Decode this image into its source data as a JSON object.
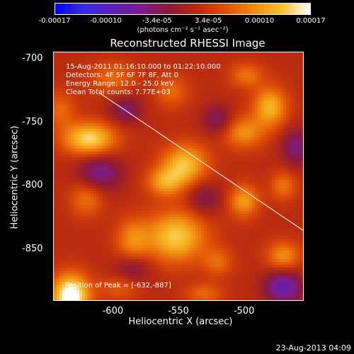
{
  "colorbar": {
    "ticks": [
      "-0.00017",
      "-0.00010",
      "-3.4e-05",
      "3.4e-05",
      "0.00010",
      "0.00017"
    ],
    "units": "(photons cm⁻² s⁻¹ asec⁻²)",
    "colors": [
      "#0000ff",
      "#3a2be0",
      "#5b1fb8",
      "#7a1d90",
      "#8a1a3a",
      "#b82a10",
      "#e05008",
      "#f08a10",
      "#f8c030",
      "#ffffff"
    ]
  },
  "info": {
    "line1": "15-Aug-2011 01:16:10.000 to 01:22:10.000",
    "line2": "Detectors: 4F 5F 6F 7F 8F, Att 0",
    "line3": "Energy Range: 12.0 - 25.0 keV",
    "line4": "Clean     Total counts: 7.77E+03"
  },
  "peak_label": "Position of Peak = [-632,-887]",
  "timestamp": "23-Aug-2013 04:09",
  "chart_data": {
    "type": "heatmap",
    "title": "Reconstructed RHESSI Image",
    "xlabel": "Heliocentric X (arcsec)",
    "ylabel": "Heliocentric Y (arcsec)",
    "xlim": [
      -645,
      -455
    ],
    "ylim": [
      -890,
      -695
    ],
    "x_ticks": [
      -600,
      -550,
      -500
    ],
    "x_tick_labels": [
      "-600",
      "-550",
      "-500"
    ],
    "y_ticks": [
      -700,
      -750,
      -800,
      -850
    ],
    "y_tick_labels": [
      "-700",
      "-750",
      "-800",
      "-850"
    ],
    "zlim": [
      -0.00017,
      0.00017
    ],
    "peak": {
      "x": -632,
      "y": -887
    },
    "limb_line": {
      "x": [
        -610,
        -455
      ],
      "y": [
        -727,
        -835
      ]
    },
    "blobs": [
      {
        "x": -632,
        "y": -887,
        "sx": 10,
        "sy": 12,
        "v": 1.0
      },
      {
        "x": -618,
        "y": -763,
        "sx": 14,
        "sy": 9,
        "v": 0.75
      },
      {
        "x": -640,
        "y": -740,
        "sx": 8,
        "sy": 10,
        "v": 0.3
      },
      {
        "x": -545,
        "y": -783,
        "sx": 12,
        "sy": 11,
        "v": 0.65
      },
      {
        "x": -560,
        "y": -797,
        "sx": 10,
        "sy": 8,
        "v": 0.5
      },
      {
        "x": -552,
        "y": -840,
        "sx": 16,
        "sy": 14,
        "v": 0.7
      },
      {
        "x": -585,
        "y": -843,
        "sx": 9,
        "sy": 12,
        "v": 0.4
      },
      {
        "x": -480,
        "y": -738,
        "sx": 9,
        "sy": 11,
        "v": 0.6
      },
      {
        "x": -500,
        "y": -758,
        "sx": 11,
        "sy": 9,
        "v": 0.45
      },
      {
        "x": -498,
        "y": -713,
        "sx": 9,
        "sy": 7,
        "v": 0.35
      },
      {
        "x": -470,
        "y": -800,
        "sx": 7,
        "sy": 8,
        "v": 0.35
      },
      {
        "x": -500,
        "y": -812,
        "sx": 8,
        "sy": 9,
        "v": 0.5
      },
      {
        "x": -470,
        "y": -855,
        "sx": 9,
        "sy": 8,
        "v": 0.45
      },
      {
        "x": -520,
        "y": -860,
        "sx": 8,
        "sy": 8,
        "v": 0.3
      },
      {
        "x": -600,
        "y": -715,
        "sx": 12,
        "sy": 9,
        "v": 0.3
      },
      {
        "x": -555,
        "y": -726,
        "sx": 9,
        "sy": 9,
        "v": 0.3
      },
      {
        "x": -620,
        "y": -810,
        "sx": 9,
        "sy": 10,
        "v": 0.35
      },
      {
        "x": -595,
        "y": -880,
        "sx": 10,
        "sy": 7,
        "v": 0.25
      },
      {
        "x": -530,
        "y": -885,
        "sx": 10,
        "sy": 6,
        "v": 0.3
      },
      {
        "x": -520,
        "y": -748,
        "sx": 8,
        "sy": 8,
        "v": -0.35
      },
      {
        "x": -610,
        "y": -790,
        "sx": 12,
        "sy": 10,
        "v": -0.45
      },
      {
        "x": -530,
        "y": -810,
        "sx": 9,
        "sy": 9,
        "v": -0.3
      },
      {
        "x": -470,
        "y": -880,
        "sx": 10,
        "sy": 9,
        "v": -0.6
      },
      {
        "x": -590,
        "y": -740,
        "sx": 9,
        "sy": 8,
        "v": -0.35
      },
      {
        "x": -460,
        "y": -770,
        "sx": 8,
        "sy": 10,
        "v": -0.4
      },
      {
        "x": -585,
        "y": -865,
        "sx": 10,
        "sy": 8,
        "v": -0.3
      }
    ]
  }
}
